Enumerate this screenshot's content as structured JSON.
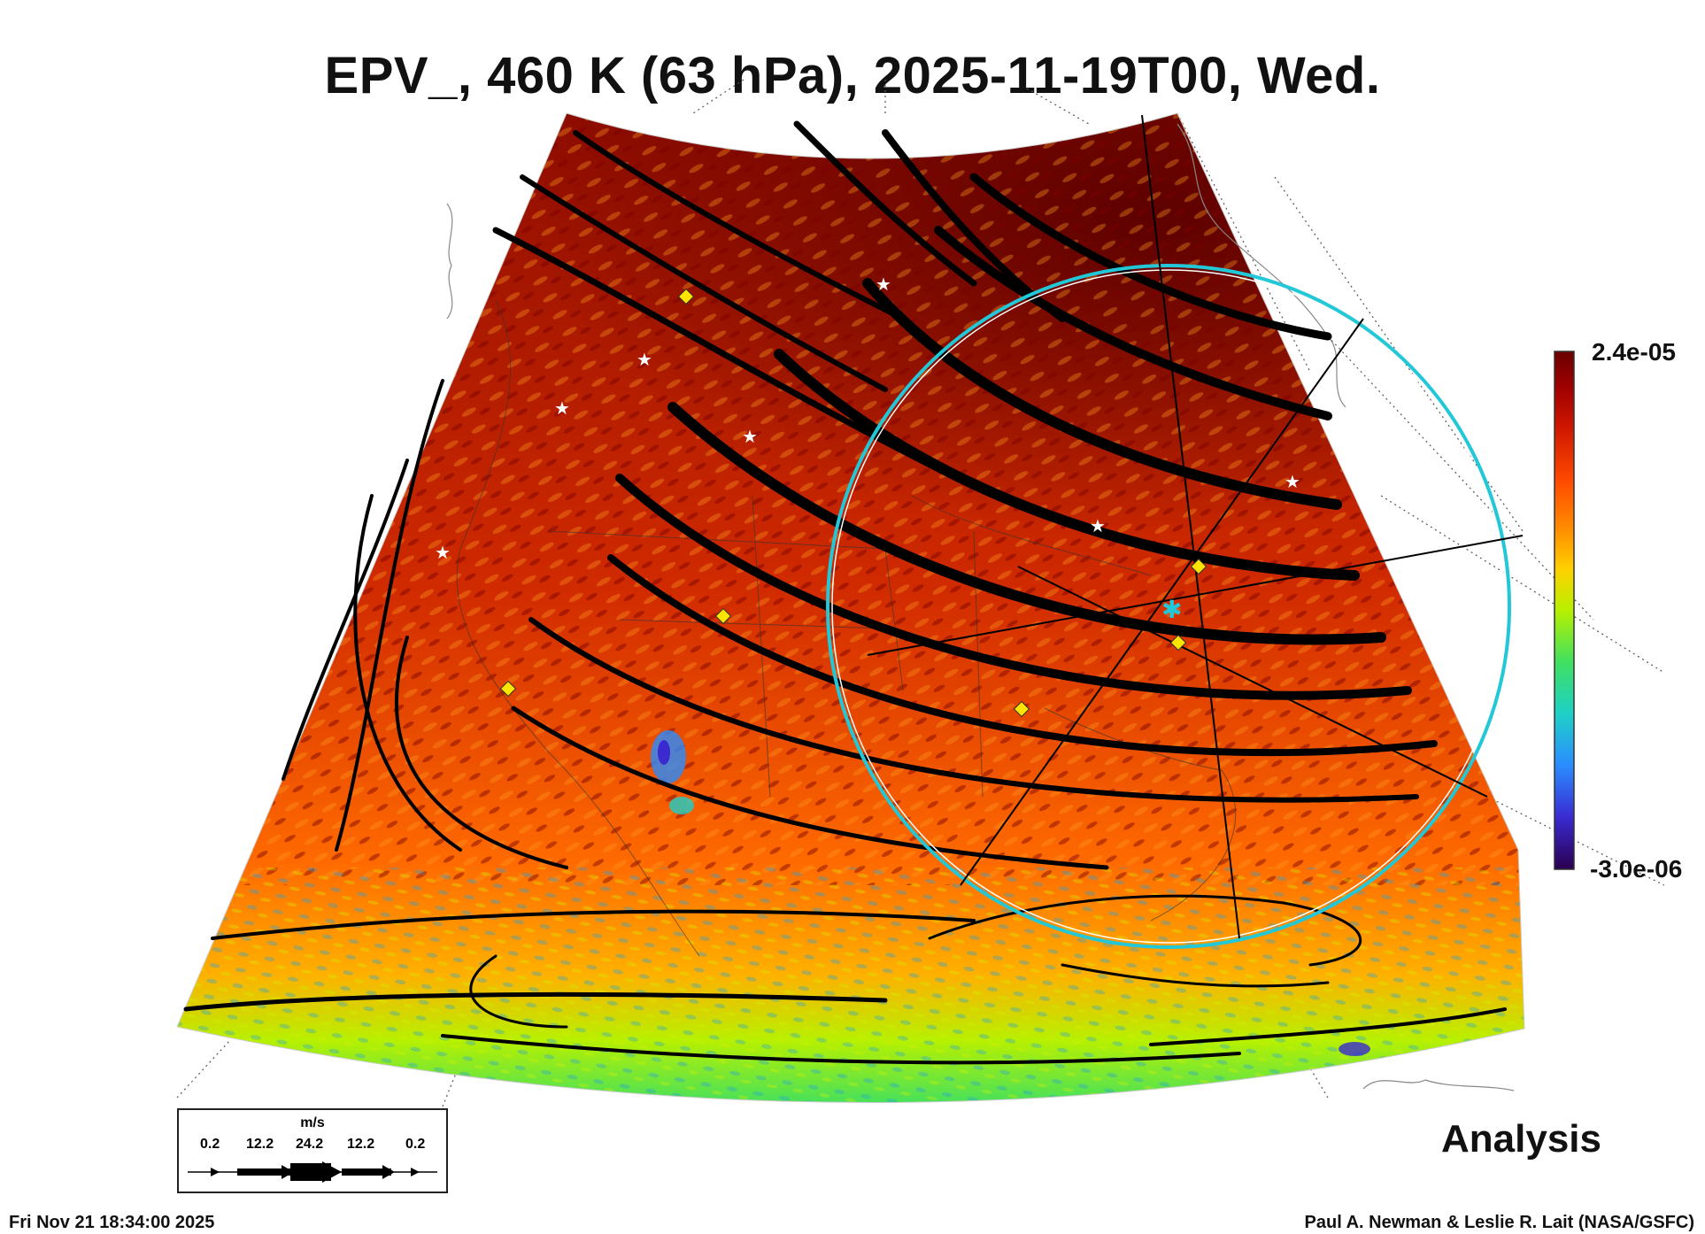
{
  "title": "EPV_, 460 K (63 hPa), 2025-11-19T00, Wed.",
  "colorbar": {
    "max_label": "2.4e-05",
    "min_label": "-3.0e-06",
    "colors": [
      "#2a0050",
      "#3a2ad0",
      "#2a8cff",
      "#1ed0c8",
      "#40e060",
      "#b8f000",
      "#ffd000",
      "#ff8a00",
      "#ff4a00",
      "#d01800",
      "#a00000",
      "#6a0000"
    ]
  },
  "legend": {
    "unit": "m/s",
    "speeds": [
      "0.2",
      "12.2",
      "24.2",
      "12.2",
      "0.2"
    ]
  },
  "analysis_label": "Analysis",
  "footer": {
    "left": "Fri Nov 21 18:34:00 2025",
    "right": "Paul A. Newman & Leslie R. Lait (NASA/GSFC)"
  },
  "colors": {
    "ring": "#22c7d8",
    "marker_diamond": "#ffe400",
    "marker_star": "#ffffff"
  }
}
